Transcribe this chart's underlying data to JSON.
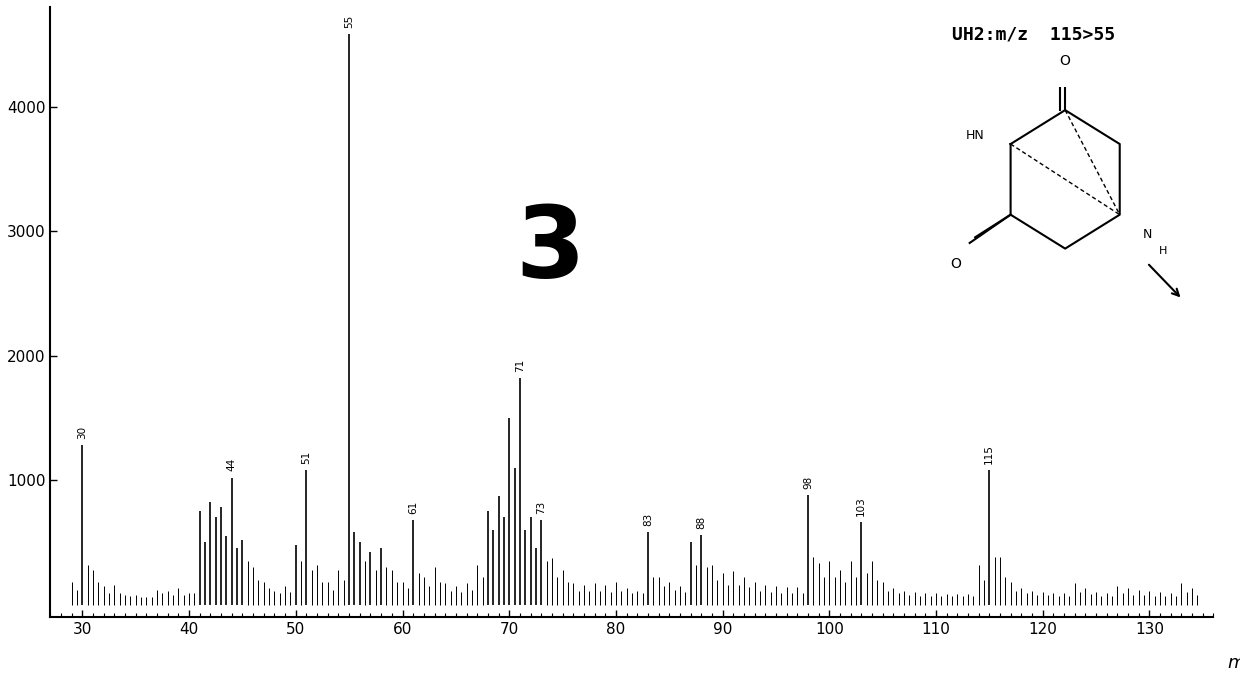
{
  "title": "UH2:m/z  115>55",
  "xlabel": "m",
  "xlim": [
    27,
    136
  ],
  "ylim": [
    -100,
    4800
  ],
  "yticks": [
    1000,
    2000,
    3000,
    4000
  ],
  "xticks": [
    30,
    40,
    50,
    60,
    70,
    80,
    90,
    100,
    110,
    120,
    130
  ],
  "label_number": "3",
  "background_color": "#ffffff",
  "peaks": [
    {
      "mz": 29.0,
      "intensity": 180
    },
    {
      "mz": 29.5,
      "intensity": 120
    },
    {
      "mz": 30.0,
      "intensity": 1280,
      "label": "30"
    },
    {
      "mz": 30.5,
      "intensity": 320
    },
    {
      "mz": 31.0,
      "intensity": 280
    },
    {
      "mz": 31.5,
      "intensity": 180
    },
    {
      "mz": 32.0,
      "intensity": 150
    },
    {
      "mz": 32.5,
      "intensity": 90
    },
    {
      "mz": 33.0,
      "intensity": 160
    },
    {
      "mz": 33.5,
      "intensity": 90
    },
    {
      "mz": 34.0,
      "intensity": 80
    },
    {
      "mz": 34.5,
      "intensity": 70
    },
    {
      "mz": 35.0,
      "intensity": 80
    },
    {
      "mz": 35.5,
      "intensity": 60
    },
    {
      "mz": 36.0,
      "intensity": 60
    },
    {
      "mz": 36.5,
      "intensity": 60
    },
    {
      "mz": 37.0,
      "intensity": 120
    },
    {
      "mz": 37.5,
      "intensity": 90
    },
    {
      "mz": 38.0,
      "intensity": 110
    },
    {
      "mz": 38.5,
      "intensity": 80
    },
    {
      "mz": 39.0,
      "intensity": 130
    },
    {
      "mz": 39.5,
      "intensity": 80
    },
    {
      "mz": 40.0,
      "intensity": 90
    },
    {
      "mz": 40.5,
      "intensity": 90
    },
    {
      "mz": 41.0,
      "intensity": 750
    },
    {
      "mz": 41.5,
      "intensity": 500
    },
    {
      "mz": 42.0,
      "intensity": 820
    },
    {
      "mz": 42.5,
      "intensity": 700
    },
    {
      "mz": 43.0,
      "intensity": 780
    },
    {
      "mz": 43.5,
      "intensity": 550
    },
    {
      "mz": 44.0,
      "intensity": 1020,
      "label": "44"
    },
    {
      "mz": 44.5,
      "intensity": 450
    },
    {
      "mz": 45.0,
      "intensity": 520
    },
    {
      "mz": 45.5,
      "intensity": 350
    },
    {
      "mz": 46.0,
      "intensity": 300
    },
    {
      "mz": 46.5,
      "intensity": 200
    },
    {
      "mz": 47.0,
      "intensity": 180
    },
    {
      "mz": 47.5,
      "intensity": 130
    },
    {
      "mz": 48.0,
      "intensity": 110
    },
    {
      "mz": 48.5,
      "intensity": 90
    },
    {
      "mz": 49.0,
      "intensity": 150
    },
    {
      "mz": 49.5,
      "intensity": 100
    },
    {
      "mz": 50.0,
      "intensity": 480
    },
    {
      "mz": 50.5,
      "intensity": 350
    },
    {
      "mz": 51.0,
      "intensity": 1080,
      "label": "51"
    },
    {
      "mz": 51.5,
      "intensity": 280
    },
    {
      "mz": 52.0,
      "intensity": 320
    },
    {
      "mz": 52.5,
      "intensity": 180
    },
    {
      "mz": 53.0,
      "intensity": 180
    },
    {
      "mz": 53.5,
      "intensity": 120
    },
    {
      "mz": 54.0,
      "intensity": 280
    },
    {
      "mz": 54.5,
      "intensity": 200
    },
    {
      "mz": 55.0,
      "intensity": 4580,
      "label": "55"
    },
    {
      "mz": 55.5,
      "intensity": 580
    },
    {
      "mz": 56.0,
      "intensity": 500
    },
    {
      "mz": 56.5,
      "intensity": 350
    },
    {
      "mz": 57.0,
      "intensity": 420
    },
    {
      "mz": 57.5,
      "intensity": 280
    },
    {
      "mz": 58.0,
      "intensity": 450
    },
    {
      "mz": 58.5,
      "intensity": 300
    },
    {
      "mz": 59.0,
      "intensity": 280
    },
    {
      "mz": 59.5,
      "intensity": 180
    },
    {
      "mz": 60.0,
      "intensity": 180
    },
    {
      "mz": 60.5,
      "intensity": 130
    },
    {
      "mz": 61.0,
      "intensity": 680,
      "label": "61"
    },
    {
      "mz": 61.5,
      "intensity": 250
    },
    {
      "mz": 62.0,
      "intensity": 220
    },
    {
      "mz": 62.5,
      "intensity": 150
    },
    {
      "mz": 63.0,
      "intensity": 300
    },
    {
      "mz": 63.5,
      "intensity": 180
    },
    {
      "mz": 64.0,
      "intensity": 170
    },
    {
      "mz": 64.5,
      "intensity": 110
    },
    {
      "mz": 65.0,
      "intensity": 150
    },
    {
      "mz": 65.5,
      "intensity": 100
    },
    {
      "mz": 66.0,
      "intensity": 170
    },
    {
      "mz": 66.5,
      "intensity": 120
    },
    {
      "mz": 67.0,
      "intensity": 320
    },
    {
      "mz": 67.5,
      "intensity": 220
    },
    {
      "mz": 68.0,
      "intensity": 750
    },
    {
      "mz": 68.5,
      "intensity": 600
    },
    {
      "mz": 69.0,
      "intensity": 870
    },
    {
      "mz": 69.5,
      "intensity": 700
    },
    {
      "mz": 70.0,
      "intensity": 1500
    },
    {
      "mz": 70.5,
      "intensity": 1100
    },
    {
      "mz": 71.0,
      "intensity": 1820,
      "label": "71"
    },
    {
      "mz": 71.5,
      "intensity": 600
    },
    {
      "mz": 72.0,
      "intensity": 700
    },
    {
      "mz": 72.5,
      "intensity": 450
    },
    {
      "mz": 73.0,
      "intensity": 680,
      "label": "73"
    },
    {
      "mz": 73.5,
      "intensity": 350
    },
    {
      "mz": 74.0,
      "intensity": 370
    },
    {
      "mz": 74.5,
      "intensity": 220
    },
    {
      "mz": 75.0,
      "intensity": 280
    },
    {
      "mz": 75.5,
      "intensity": 180
    },
    {
      "mz": 76.0,
      "intensity": 170
    },
    {
      "mz": 76.5,
      "intensity": 110
    },
    {
      "mz": 77.0,
      "intensity": 160
    },
    {
      "mz": 77.5,
      "intensity": 110
    },
    {
      "mz": 78.0,
      "intensity": 170
    },
    {
      "mz": 78.5,
      "intensity": 110
    },
    {
      "mz": 79.0,
      "intensity": 160
    },
    {
      "mz": 79.5,
      "intensity": 100
    },
    {
      "mz": 80.0,
      "intensity": 180
    },
    {
      "mz": 80.5,
      "intensity": 110
    },
    {
      "mz": 81.0,
      "intensity": 130
    },
    {
      "mz": 81.5,
      "intensity": 90
    },
    {
      "mz": 82.0,
      "intensity": 110
    },
    {
      "mz": 82.5,
      "intensity": 90
    },
    {
      "mz": 83.0,
      "intensity": 580,
      "label": "83"
    },
    {
      "mz": 83.5,
      "intensity": 220
    },
    {
      "mz": 84.0,
      "intensity": 220
    },
    {
      "mz": 84.5,
      "intensity": 150
    },
    {
      "mz": 85.0,
      "intensity": 180
    },
    {
      "mz": 85.5,
      "intensity": 120
    },
    {
      "mz": 86.0,
      "intensity": 150
    },
    {
      "mz": 86.5,
      "intensity": 100
    },
    {
      "mz": 87.0,
      "intensity": 500
    },
    {
      "mz": 87.5,
      "intensity": 320
    },
    {
      "mz": 88.0,
      "intensity": 560,
      "label": "88"
    },
    {
      "mz": 88.5,
      "intensity": 300
    },
    {
      "mz": 89.0,
      "intensity": 320
    },
    {
      "mz": 89.5,
      "intensity": 200
    },
    {
      "mz": 90.0,
      "intensity": 250
    },
    {
      "mz": 90.5,
      "intensity": 160
    },
    {
      "mz": 91.0,
      "intensity": 270
    },
    {
      "mz": 91.5,
      "intensity": 160
    },
    {
      "mz": 92.0,
      "intensity": 220
    },
    {
      "mz": 92.5,
      "intensity": 140
    },
    {
      "mz": 93.0,
      "intensity": 180
    },
    {
      "mz": 93.5,
      "intensity": 110
    },
    {
      "mz": 94.0,
      "intensity": 160
    },
    {
      "mz": 94.5,
      "intensity": 100
    },
    {
      "mz": 95.0,
      "intensity": 150
    },
    {
      "mz": 95.5,
      "intensity": 90
    },
    {
      "mz": 96.0,
      "intensity": 140
    },
    {
      "mz": 96.5,
      "intensity": 90
    },
    {
      "mz": 97.0,
      "intensity": 140
    },
    {
      "mz": 97.5,
      "intensity": 90
    },
    {
      "mz": 98.0,
      "intensity": 880,
      "label": "98"
    },
    {
      "mz": 98.5,
      "intensity": 380
    },
    {
      "mz": 99.0,
      "intensity": 330
    },
    {
      "mz": 99.5,
      "intensity": 220
    },
    {
      "mz": 100.0,
      "intensity": 350
    },
    {
      "mz": 100.5,
      "intensity": 220
    },
    {
      "mz": 101.0,
      "intensity": 280
    },
    {
      "mz": 101.5,
      "intensity": 180
    },
    {
      "mz": 102.0,
      "intensity": 350
    },
    {
      "mz": 102.5,
      "intensity": 220
    },
    {
      "mz": 103.0,
      "intensity": 660,
      "label": "103"
    },
    {
      "mz": 103.5,
      "intensity": 250
    },
    {
      "mz": 104.0,
      "intensity": 350
    },
    {
      "mz": 104.5,
      "intensity": 200
    },
    {
      "mz": 105.0,
      "intensity": 180
    },
    {
      "mz": 105.5,
      "intensity": 110
    },
    {
      "mz": 106.0,
      "intensity": 130
    },
    {
      "mz": 106.5,
      "intensity": 90
    },
    {
      "mz": 107.0,
      "intensity": 110
    },
    {
      "mz": 107.5,
      "intensity": 80
    },
    {
      "mz": 108.0,
      "intensity": 100
    },
    {
      "mz": 108.5,
      "intensity": 70
    },
    {
      "mz": 109.0,
      "intensity": 90
    },
    {
      "mz": 109.5,
      "intensity": 70
    },
    {
      "mz": 110.0,
      "intensity": 90
    },
    {
      "mz": 110.5,
      "intensity": 70
    },
    {
      "mz": 111.0,
      "intensity": 85
    },
    {
      "mz": 111.5,
      "intensity": 65
    },
    {
      "mz": 112.0,
      "intensity": 85
    },
    {
      "mz": 112.5,
      "intensity": 65
    },
    {
      "mz": 113.0,
      "intensity": 85
    },
    {
      "mz": 113.5,
      "intensity": 65
    },
    {
      "mz": 114.0,
      "intensity": 320
    },
    {
      "mz": 114.5,
      "intensity": 200
    },
    {
      "mz": 115.0,
      "intensity": 1080,
      "label": "115"
    },
    {
      "mz": 115.5,
      "intensity": 380
    },
    {
      "mz": 116.0,
      "intensity": 380
    },
    {
      "mz": 116.5,
      "intensity": 220
    },
    {
      "mz": 117.0,
      "intensity": 180
    },
    {
      "mz": 117.5,
      "intensity": 110
    },
    {
      "mz": 118.0,
      "intensity": 130
    },
    {
      "mz": 118.5,
      "intensity": 90
    },
    {
      "mz": 119.0,
      "intensity": 110
    },
    {
      "mz": 119.5,
      "intensity": 80
    },
    {
      "mz": 120.0,
      "intensity": 100
    },
    {
      "mz": 120.5,
      "intensity": 75
    },
    {
      "mz": 121.0,
      "intensity": 90
    },
    {
      "mz": 121.5,
      "intensity": 70
    },
    {
      "mz": 122.0,
      "intensity": 90
    },
    {
      "mz": 122.5,
      "intensity": 70
    },
    {
      "mz": 123.0,
      "intensity": 170
    },
    {
      "mz": 123.5,
      "intensity": 100
    },
    {
      "mz": 124.0,
      "intensity": 130
    },
    {
      "mz": 124.5,
      "intensity": 85
    },
    {
      "mz": 125.0,
      "intensity": 100
    },
    {
      "mz": 125.5,
      "intensity": 70
    },
    {
      "mz": 126.0,
      "intensity": 90
    },
    {
      "mz": 126.5,
      "intensity": 65
    },
    {
      "mz": 127.0,
      "intensity": 150
    },
    {
      "mz": 127.5,
      "intensity": 90
    },
    {
      "mz": 128.0,
      "intensity": 130
    },
    {
      "mz": 128.5,
      "intensity": 80
    },
    {
      "mz": 129.0,
      "intensity": 120
    },
    {
      "mz": 129.5,
      "intensity": 75
    },
    {
      "mz": 130.0,
      "intensity": 110
    },
    {
      "mz": 130.5,
      "intensity": 70
    },
    {
      "mz": 131.0,
      "intensity": 100
    },
    {
      "mz": 131.5,
      "intensity": 65
    },
    {
      "mz": 132.0,
      "intensity": 90
    },
    {
      "mz": 132.5,
      "intensity": 65
    },
    {
      "mz": 133.0,
      "intensity": 170
    },
    {
      "mz": 133.5,
      "intensity": 100
    },
    {
      "mz": 134.0,
      "intensity": 130
    },
    {
      "mz": 134.5,
      "intensity": 80
    }
  ]
}
